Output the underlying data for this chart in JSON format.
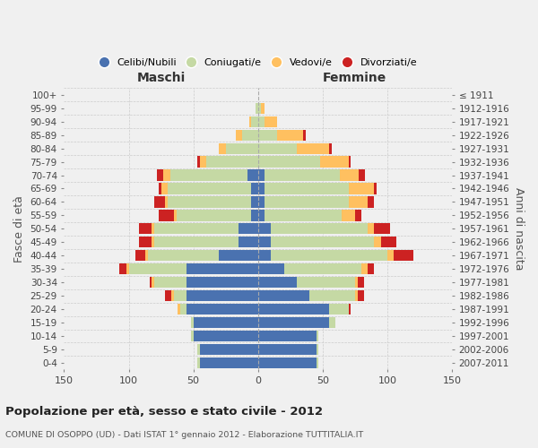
{
  "age_groups": [
    "0-4",
    "5-9",
    "10-14",
    "15-19",
    "20-24",
    "25-29",
    "30-34",
    "35-39",
    "40-44",
    "45-49",
    "50-54",
    "55-59",
    "60-64",
    "65-69",
    "70-74",
    "75-79",
    "80-84",
    "85-89",
    "90-94",
    "95-99",
    "100+"
  ],
  "birth_years": [
    "2007-2011",
    "2002-2006",
    "1997-2001",
    "1992-1996",
    "1987-1991",
    "1982-1986",
    "1977-1981",
    "1972-1976",
    "1967-1971",
    "1962-1966",
    "1957-1961",
    "1952-1956",
    "1947-1951",
    "1942-1946",
    "1937-1941",
    "1932-1936",
    "1927-1931",
    "1922-1926",
    "1917-1921",
    "1912-1916",
    "≤ 1911"
  ],
  "males_celibi": [
    45,
    45,
    50,
    50,
    55,
    55,
    55,
    55,
    30,
    15,
    15,
    5,
    5,
    5,
    8,
    0,
    0,
    0,
    0,
    0,
    0
  ],
  "males_coniugati": [
    2,
    2,
    2,
    2,
    5,
    10,
    25,
    45,
    55,
    65,
    65,
    58,
    65,
    65,
    60,
    40,
    25,
    12,
    5,
    2,
    0
  ],
  "males_vedovi": [
    0,
    0,
    0,
    0,
    2,
    2,
    2,
    2,
    2,
    2,
    2,
    2,
    2,
    5,
    5,
    5,
    5,
    5,
    2,
    0,
    0
  ],
  "males_divorziati": [
    0,
    0,
    0,
    0,
    0,
    5,
    2,
    5,
    8,
    10,
    10,
    12,
    8,
    2,
    5,
    2,
    0,
    0,
    0,
    0,
    0
  ],
  "females_nubili": [
    45,
    45,
    45,
    55,
    55,
    40,
    30,
    20,
    10,
    10,
    10,
    5,
    5,
    5,
    5,
    0,
    0,
    0,
    0,
    0,
    0
  ],
  "females_coniugate": [
    2,
    2,
    2,
    5,
    15,
    35,
    45,
    60,
    90,
    80,
    75,
    60,
    65,
    65,
    58,
    48,
    30,
    15,
    5,
    2,
    0
  ],
  "females_vedove": [
    0,
    0,
    0,
    0,
    0,
    2,
    2,
    5,
    5,
    5,
    5,
    10,
    15,
    20,
    15,
    22,
    25,
    20,
    10,
    3,
    0
  ],
  "females_divorziate": [
    0,
    0,
    0,
    0,
    2,
    5,
    5,
    5,
    15,
    12,
    12,
    5,
    5,
    2,
    5,
    2,
    2,
    2,
    0,
    0,
    0
  ],
  "colors": {
    "celibi": "#4a72b0",
    "coniugati": "#c5d9a4",
    "vedovi": "#ffc060",
    "divorziati": "#cc2222"
  },
  "title": "Popolazione per età, sesso e stato civile - 2012",
  "subtitle": "COMUNE DI OSOPPO (UD) - Dati ISTAT 1° gennaio 2012 - Elaborazione TUTTITALIA.IT",
  "xlabel_left": "Maschi",
  "xlabel_right": "Femmine",
  "ylabel_left": "Fasce di età",
  "ylabel_right": "Anni di nascita",
  "xlim": 150,
  "background_color": "#f0f0f0",
  "legend_labels": [
    "Celibi/Nubili",
    "Coniugati/e",
    "Vedovi/e",
    "Divorziati/e"
  ]
}
